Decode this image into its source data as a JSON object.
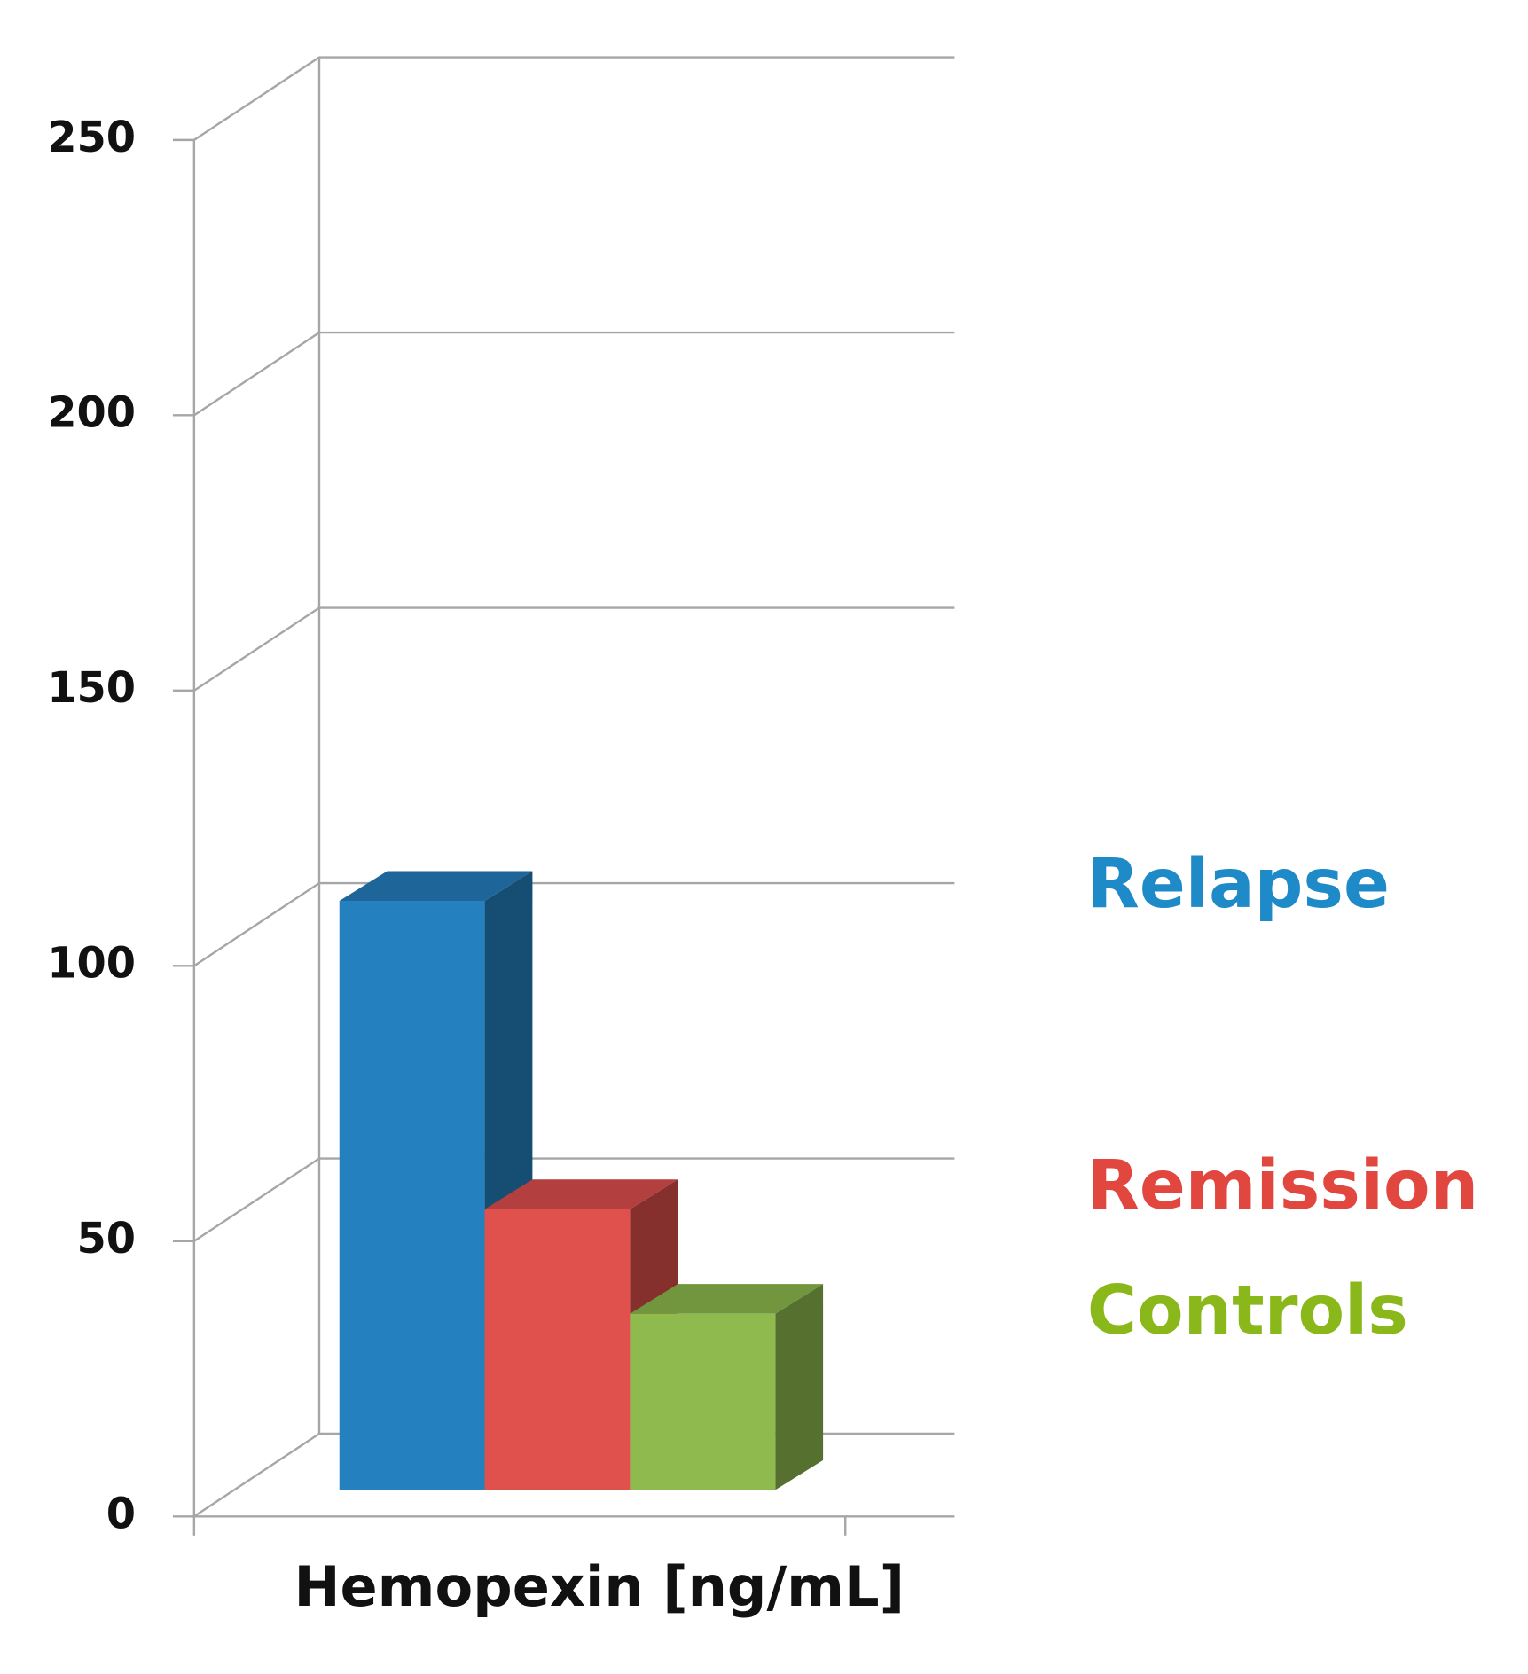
{
  "chart_data": {
    "type": "bar",
    "x_label": "Hemopexin [ng/mL]",
    "series": [
      {
        "name": "Relapse",
        "color": "#2580c0",
        "values": [
          107
        ]
      },
      {
        "name": "Remission",
        "color": "#e0504d",
        "values": [
          51
        ]
      },
      {
        "name": "Controls",
        "color": "#8fbb4e",
        "values": [
          32
        ]
      }
    ],
    "legend_colors": [
      "#1f8ac8",
      "#e2473f",
      "#8ab81a"
    ],
    "ylim": [
      0,
      250
    ],
    "yticks": [
      0,
      50,
      100,
      150,
      200,
      250
    ],
    "grid": true
  }
}
